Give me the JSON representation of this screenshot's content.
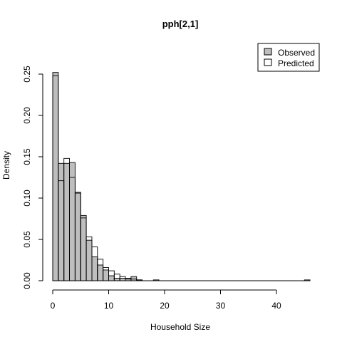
{
  "chart_data": {
    "type": "bar",
    "title": "pph[2,1]",
    "xlabel": "Household Size",
    "ylabel": "Density",
    "xlim": [
      -1,
      46.5
    ],
    "ylim": [
      0,
      0.26
    ],
    "x_ticks": [
      0,
      10,
      20,
      30,
      40
    ],
    "x_tick_labels": [
      "0",
      "10",
      "20",
      "30",
      "40"
    ],
    "y_ticks": [
      0.0,
      0.05,
      0.1,
      0.15,
      0.2,
      0.25
    ],
    "y_tick_labels": [
      "0.00",
      "0.05",
      "0.10",
      "0.15",
      "0.20",
      "0.25"
    ],
    "bin_width": 1,
    "bin_start": 0,
    "series": [
      {
        "name": "Observed",
        "fill": "#bebebe",
        "values": [
          0.252,
          0.142,
          0.142,
          0.143,
          0.107,
          0.079,
          0.049,
          0.029,
          0.019,
          0.013,
          0.006,
          0.003,
          0.003,
          0.002,
          0.005,
          0.001,
          0.0,
          0.0,
          0.001,
          0.0,
          0.0,
          0.0,
          0.0,
          0.0,
          0.0,
          0.0,
          0.0,
          0.0,
          0.0,
          0.0,
          0.0,
          0.0,
          0.0,
          0.0,
          0.0,
          0.0,
          0.0,
          0.0,
          0.0,
          0.0,
          0.0,
          0.0,
          0.0,
          0.0,
          0.0,
          0.001
        ]
      },
      {
        "name": "Predicted",
        "fill": "#ffffff",
        "values": [
          0.248,
          0.121,
          0.148,
          0.125,
          0.106,
          0.076,
          0.053,
          0.041,
          0.026,
          0.016,
          0.012,
          0.008,
          0.005,
          0.003,
          0.002,
          0.001,
          0.0,
          0.0,
          0.0,
          0.0,
          0.0,
          0.0,
          0.0,
          0.0,
          0.0,
          0.0,
          0.0,
          0.0,
          0.0,
          0.0,
          0.0,
          0.0,
          0.0,
          0.0,
          0.0,
          0.0,
          0.0,
          0.0,
          0.0,
          0.0,
          0.0,
          0.0,
          0.0,
          0.0,
          0.0,
          0.0
        ]
      }
    ],
    "legend": {
      "position": "top-right",
      "entries": [
        "Observed",
        "Predicted"
      ]
    }
  }
}
